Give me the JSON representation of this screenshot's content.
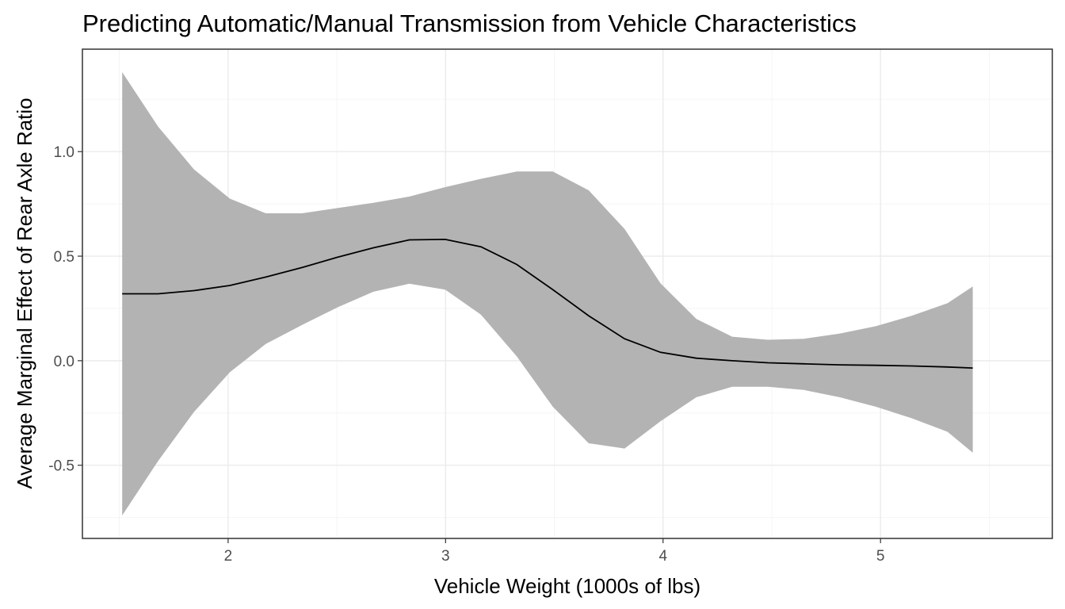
{
  "chart_data": {
    "type": "line",
    "title": "Predicting Automatic/Manual Transmission from Vehicle Characteristics",
    "xlabel": "Vehicle Weight (1000s of lbs)",
    "ylabel": "Average Marginal Effect of Rear Axle Ratio",
    "xlim": [
      1.33,
      5.79
    ],
    "ylim": [
      -0.85,
      1.49
    ],
    "x_ticks": [
      2,
      3,
      4,
      5
    ],
    "y_ticks": [
      -0.5,
      0.0,
      0.5,
      1.0
    ],
    "x_tick_labels": [
      "2",
      "3",
      "4",
      "5"
    ],
    "y_tick_labels": [
      "-0.5",
      "0.0",
      "0.5",
      "1.0"
    ],
    "grid": true,
    "legend": "none",
    "band_color": "#b3b3b3",
    "line_color": "#000000",
    "series": [
      {
        "x": [
          1.513,
          1.678,
          1.843,
          2.008,
          2.173,
          2.338,
          2.503,
          2.668,
          2.833,
          2.998,
          3.163,
          3.328,
          3.493,
          3.658,
          3.823,
          3.988,
          4.153,
          4.318,
          4.483,
          4.648,
          4.813,
          4.978,
          5.143,
          5.308,
          5.424
        ],
        "y": [
          0.32,
          0.32,
          0.335,
          0.36,
          0.4,
          0.445,
          0.495,
          0.54,
          0.578,
          0.58,
          0.545,
          0.46,
          0.34,
          0.215,
          0.105,
          0.04,
          0.012,
          0.0,
          -0.01,
          -0.015,
          -0.02,
          -0.022,
          -0.025,
          -0.03,
          -0.035
        ],
        "lower": [
          -0.74,
          -0.48,
          -0.245,
          -0.055,
          0.08,
          0.17,
          0.255,
          0.33,
          0.368,
          0.34,
          0.22,
          0.02,
          -0.22,
          -0.395,
          -0.42,
          -0.29,
          -0.175,
          -0.125,
          -0.125,
          -0.14,
          -0.175,
          -0.22,
          -0.275,
          -0.34,
          -0.44
        ],
        "upper": [
          1.38,
          1.12,
          0.915,
          0.775,
          0.705,
          0.705,
          0.73,
          0.755,
          0.785,
          0.83,
          0.87,
          0.905,
          0.905,
          0.815,
          0.63,
          0.37,
          0.2,
          0.115,
          0.1,
          0.105,
          0.13,
          0.165,
          0.215,
          0.275,
          0.355
        ]
      }
    ]
  }
}
